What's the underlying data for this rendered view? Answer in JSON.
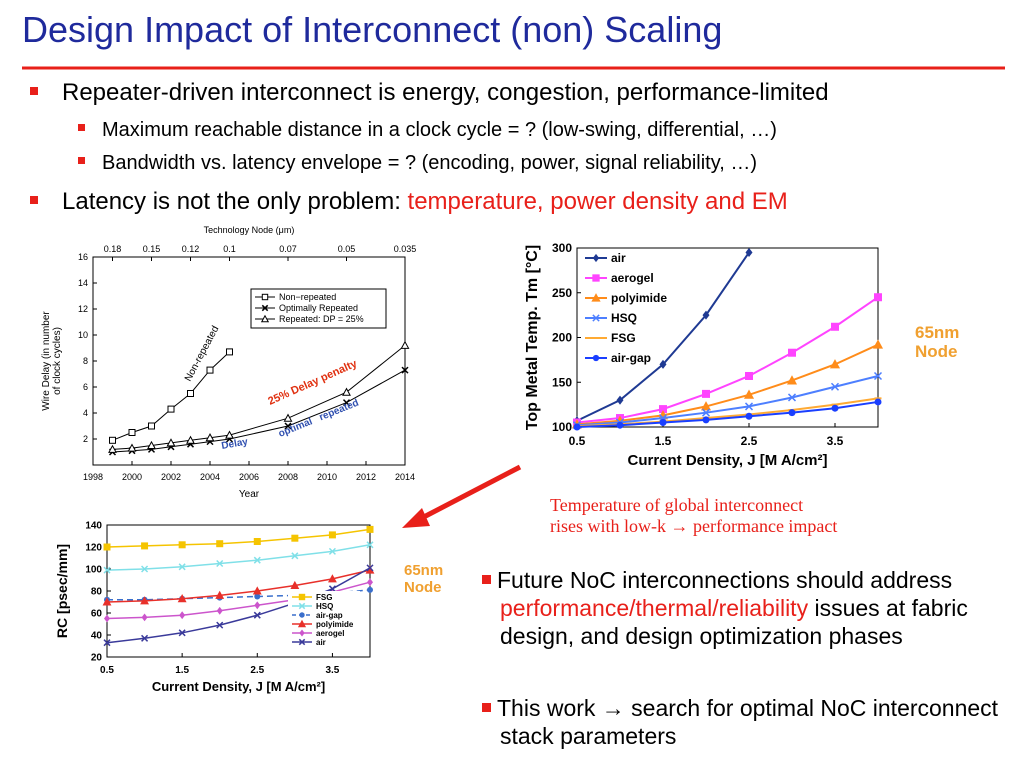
{
  "title": "Design Impact of Interconnect (non) Scaling",
  "bullets": [
    {
      "text": "Repeater-driven interconnect is energy, congestion, performance-limited",
      "sub": [
        "Maximum reachable distance in a clock cycle = ?  (low-swing, differential, …)",
        "Bandwidth vs. latency envelope = ?  (encoding, power, signal reliability, …)"
      ]
    },
    {
      "text": "Latency is not the only problem: ",
      "highlight": "temperature, power density and EM"
    }
  ],
  "caption": [
    "Temperature of global interconnect",
    "rises with low-k → performance impact"
  ],
  "node_labels": [
    "65nm\nNode",
    "65nm\nNode"
  ],
  "bottom_bullets": [
    {
      "text": "Future NoC interconnections should address ",
      "highlight": "performance/thermal/reliability",
      "rest": " issues at fabric design, and design optimization phases"
    },
    {
      "text": "This work → search for optimal NoC interconnect stack parameters"
    }
  ],
  "chart_data": [
    {
      "type": "line",
      "x2label": "Technology Node (μm)",
      "xlabel": "Year",
      "ylabel": "Wire Delay (in number of clock cycles)",
      "xlim": [
        1998,
        2014
      ],
      "ylim": [
        0,
        16
      ],
      "xticks": [
        1998,
        2000,
        2002,
        2004,
        2006,
        2008,
        2010,
        2012,
        2014
      ],
      "yticks": [
        2,
        4,
        6,
        8,
        10,
        12,
        14,
        16
      ],
      "x2ticks": [
        {
          "value": 1999,
          "label": "0.18"
        },
        {
          "value": 2001,
          "label": "0.15"
        },
        {
          "value": 2003,
          "label": "0.12"
        },
        {
          "value": 2005,
          "label": "0.1"
        },
        {
          "value": 2008,
          "label": "0.07"
        },
        {
          "value": 2011,
          "label": "0.05"
        },
        {
          "value": 2014,
          "label": "0.035"
        }
      ],
      "legend": "center-right",
      "series": [
        {
          "name": "Non−repeated",
          "color": "#000000",
          "marker": "square",
          "x": [
            1999,
            2000,
            2001,
            2002,
            2003,
            2004,
            2005
          ],
          "values": [
            1.9,
            2.5,
            3.0,
            4.3,
            5.5,
            7.3,
            8.7
          ]
        },
        {
          "name": "Optimally Repeated",
          "color": "#000000",
          "marker": "x",
          "x": [
            1999,
            2000,
            2001,
            2002,
            2003,
            2004,
            2005,
            2008,
            2011,
            2014
          ],
          "values": [
            1.0,
            1.1,
            1.2,
            1.4,
            1.6,
            1.8,
            2.0,
            3.0,
            4.8,
            7.3
          ]
        },
        {
          "name": "Repeated: DP = 25%",
          "color": "#000000",
          "marker": "triangle",
          "x": [
            1999,
            2000,
            2001,
            2002,
            2003,
            2004,
            2005,
            2008,
            2011,
            2014
          ],
          "values": [
            1.2,
            1.3,
            1.5,
            1.7,
            1.9,
            2.1,
            2.3,
            3.6,
            5.6,
            9.2
          ]
        }
      ],
      "annotations": [
        {
          "text": "Non-repeated",
          "color": "#000000"
        },
        {
          "text": "25% Delay penalty",
          "color": "#e03010"
        },
        {
          "text": "optimal   repeated",
          "color": "#3050b0"
        },
        {
          "text": "Delay",
          "color": "#3050b0"
        }
      ]
    },
    {
      "type": "line",
      "xlabel": "Current Density, J [M A/cm²]",
      "ylabel": "Top Metal Temp. Tm [°C]",
      "xlim": [
        0.5,
        4
      ],
      "ylim": [
        100,
        300
      ],
      "xticks": [
        0.5,
        1.5,
        2.5,
        3.5
      ],
      "yticks": [
        100,
        150,
        200,
        250,
        300
      ],
      "legend": "upper-left",
      "series": [
        {
          "name": "air",
          "color": "#1f3a93",
          "marker": "diamond",
          "x": [
            0.5,
            1,
            1.5,
            2,
            2.5
          ],
          "values": [
            107,
            130,
            170,
            225,
            295
          ]
        },
        {
          "name": "aerogel",
          "color": "#ff44ff",
          "marker": "square",
          "x": [
            0.5,
            1,
            1.5,
            2,
            2.5,
            3,
            3.5,
            4
          ],
          "values": [
            105,
            110,
            120,
            137,
            157,
            183,
            212,
            245
          ]
        },
        {
          "name": "polyimide",
          "color": "#ff8c1a",
          "marker": "triangle",
          "x": [
            0.5,
            1,
            1.5,
            2,
            2.5,
            3,
            3.5,
            4
          ],
          "values": [
            103,
            107,
            113,
            123,
            136,
            152,
            170,
            192
          ]
        },
        {
          "name": "HSQ",
          "color": "#4d7fff",
          "marker": "x",
          "x": [
            0.5,
            1,
            1.5,
            2,
            2.5,
            3,
            3.5,
            4
          ],
          "values": [
            102,
            105,
            110,
            116,
            123,
            133,
            145,
            157
          ]
        },
        {
          "name": "FSG",
          "color": "#ffaa33",
          "marker": "line",
          "x": [
            0.5,
            1,
            1.5,
            2,
            2.5,
            3,
            3.5,
            4
          ],
          "values": [
            101,
            103,
            106,
            110,
            114,
            119,
            125,
            132
          ]
        },
        {
          "name": "air-gap",
          "color": "#1a3fff",
          "marker": "circle",
          "x": [
            0.5,
            1,
            1.5,
            2,
            2.5,
            3,
            3.5,
            4
          ],
          "values": [
            100,
            102,
            105,
            108,
            112,
            116,
            121,
            128
          ]
        }
      ]
    },
    {
      "type": "line",
      "xlabel": "Current Density, J [M A/cm²]",
      "ylabel": "RC [psec/mm]",
      "xlim": [
        0.5,
        4
      ],
      "ylim": [
        20,
        140
      ],
      "xticks": [
        0.5,
        1.5,
        2.5,
        3.5
      ],
      "yticks": [
        20,
        40,
        60,
        80,
        100,
        120,
        140
      ],
      "legend": "lower-right",
      "series": [
        {
          "name": "FSG",
          "color": "#f5c400",
          "marker": "square",
          "x": [
            0.5,
            1,
            1.5,
            2,
            2.5,
            3,
            3.5,
            4
          ],
          "values": [
            120,
            121,
            122,
            123,
            125,
            128,
            131,
            136
          ]
        },
        {
          "name": "HSQ",
          "color": "#80e0e8",
          "marker": "x",
          "x": [
            0.5,
            1,
            1.5,
            2,
            2.5,
            3,
            3.5,
            4
          ],
          "values": [
            99,
            100,
            102,
            105,
            108,
            112,
            116,
            122
          ]
        },
        {
          "name": "air-gap",
          "color": "#3a6fcc",
          "marker": "circle",
          "dash": true,
          "x": [
            0.5,
            1,
            1.5,
            2,
            2.5,
            3,
            3.5,
            4
          ],
          "values": [
            72,
            72,
            73,
            74,
            75,
            76,
            78,
            81
          ]
        },
        {
          "name": "polyimide",
          "color": "#e8302a",
          "marker": "triangle",
          "x": [
            0.5,
            1,
            1.5,
            2,
            2.5,
            3,
            3.5,
            4
          ],
          "values": [
            70,
            71,
            73,
            76,
            80,
            85,
            91,
            99
          ]
        },
        {
          "name": "aerogel",
          "color": "#cc55cc",
          "marker": "diamond",
          "x": [
            0.5,
            1,
            1.5,
            2,
            2.5,
            3,
            3.5,
            4
          ],
          "values": [
            55,
            56,
            58,
            62,
            67,
            72,
            79,
            88
          ]
        },
        {
          "name": "air",
          "color": "#3a3a9a",
          "marker": "x",
          "x": [
            0.5,
            1,
            1.5,
            2,
            2.5,
            3,
            3.5,
            4
          ],
          "values": [
            33,
            37,
            42,
            49,
            58,
            69,
            82,
            101
          ]
        }
      ]
    }
  ]
}
